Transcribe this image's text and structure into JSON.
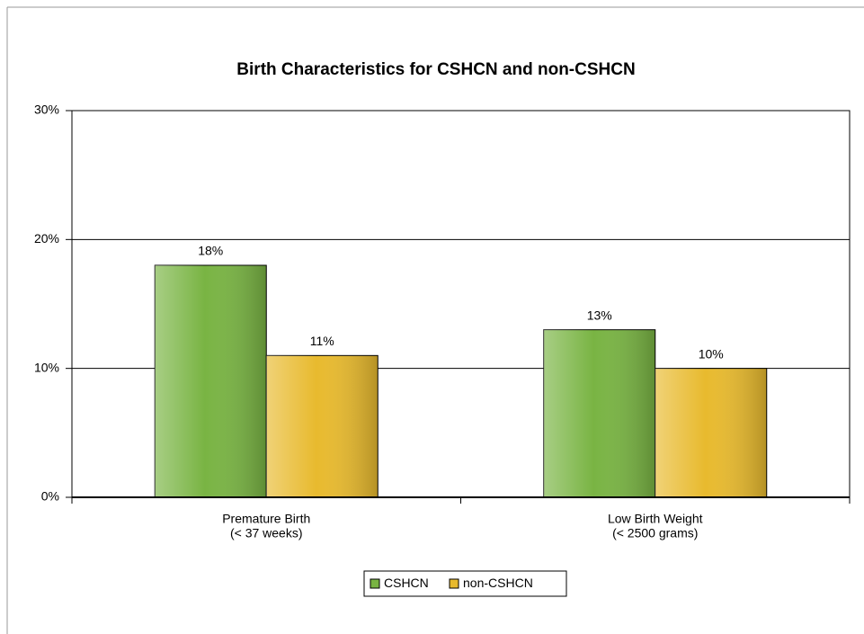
{
  "chart_data": {
    "type": "bar",
    "title": "Birth Characteristics for CSHCN and non-CSHCN",
    "categories": [
      [
        "Premature Birth",
        "(< 37 weeks)"
      ],
      [
        "Low  Birth Weight",
        "(< 2500 grams)"
      ]
    ],
    "series": [
      {
        "name": "CSHCN",
        "color": "#79b443",
        "values": [
          18,
          13
        ],
        "value_labels": [
          "18%",
          "13%"
        ]
      },
      {
        "name": "non-CSHCN",
        "color": "#e8ba2e",
        "values": [
          11,
          10
        ],
        "value_labels": [
          "11%",
          "10%"
        ]
      }
    ],
    "ylim": [
      0,
      30
    ],
    "yticks": [
      {
        "value": 0,
        "label": "0%"
      },
      {
        "value": 10,
        "label": "10%"
      },
      {
        "value": 20,
        "label": "20%"
      },
      {
        "value": 30,
        "label": "30%"
      }
    ],
    "grid": true,
    "legend": "bottom"
  }
}
